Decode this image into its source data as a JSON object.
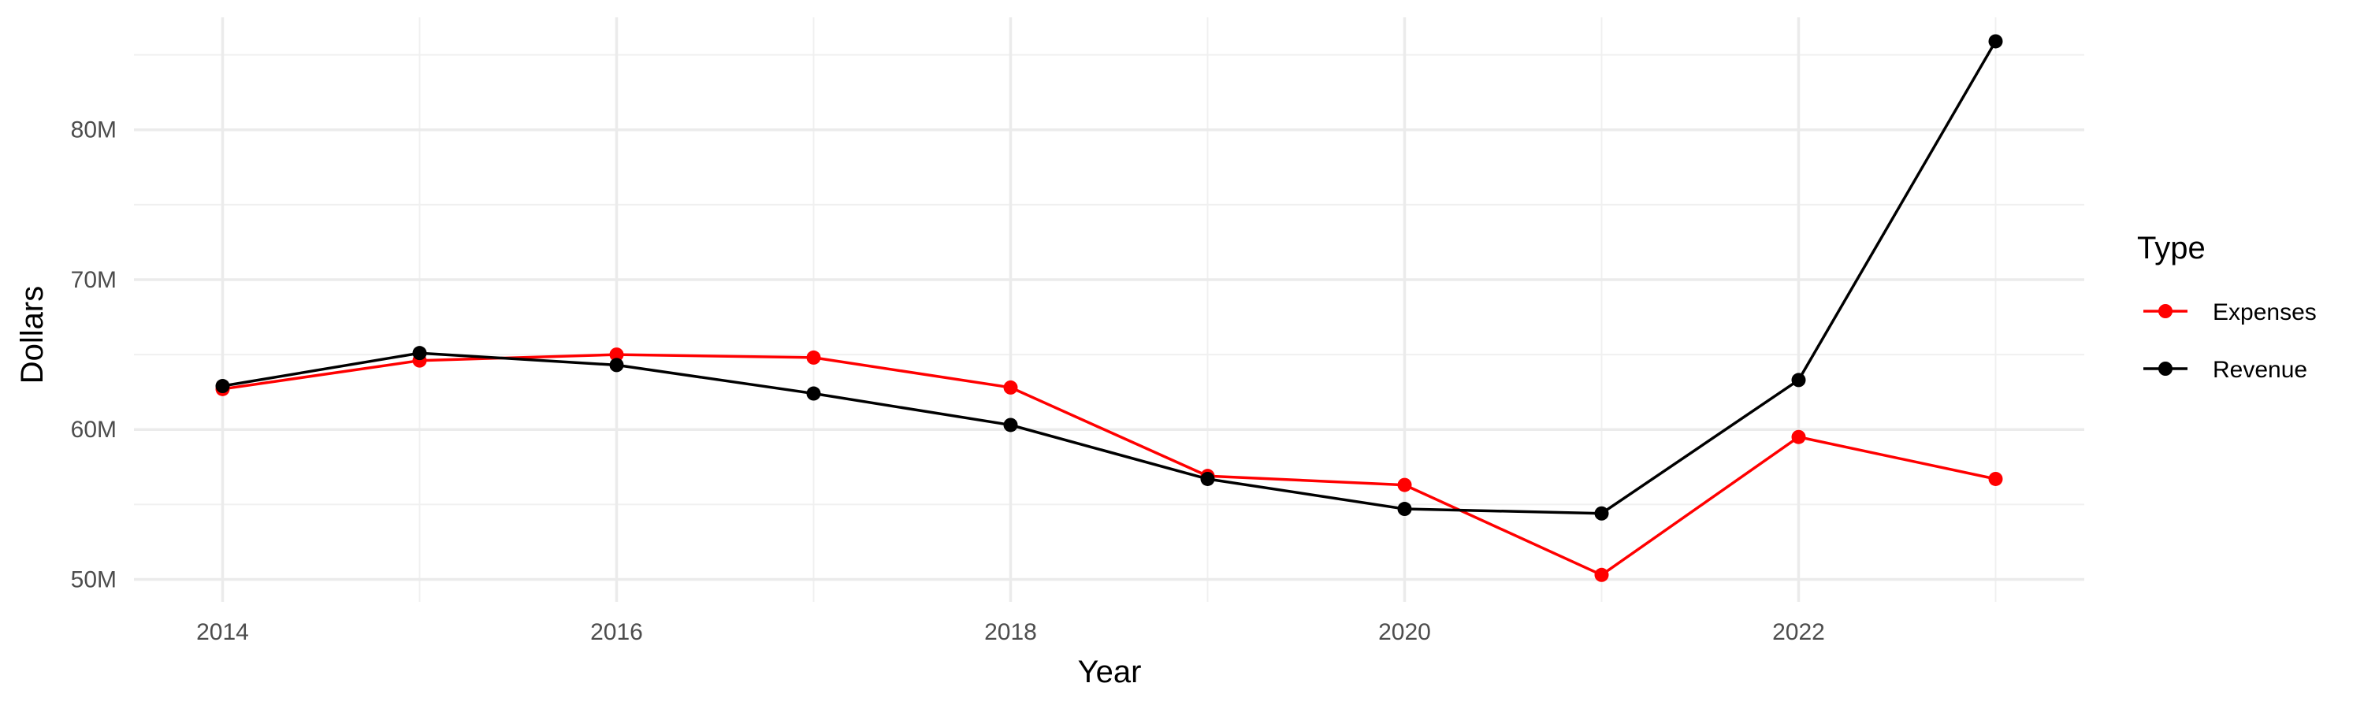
{
  "chart_data": {
    "type": "line",
    "xlabel": "Year",
    "ylabel": "Dollars",
    "x": [
      2014,
      2015,
      2016,
      2017,
      2018,
      2019,
      2020,
      2021,
      2022,
      2023
    ],
    "xlim": [
      2013.55,
      2023.45
    ],
    "ylim": [
      48500000,
      87500000
    ],
    "x_ticks": [
      {
        "value": 2014,
        "label": "2014"
      },
      {
        "value": 2016,
        "label": "2016"
      },
      {
        "value": 2018,
        "label": "2018"
      },
      {
        "value": 2020,
        "label": "2020"
      },
      {
        "value": 2022,
        "label": "2022"
      }
    ],
    "y_ticks": [
      {
        "value": 50000000,
        "label": "50M"
      },
      {
        "value": 60000000,
        "label": "60M"
      },
      {
        "value": 70000000,
        "label": "70M"
      },
      {
        "value": 80000000,
        "label": "80M"
      }
    ],
    "grid": true,
    "legend": {
      "title": "Type",
      "position": "right"
    },
    "series": [
      {
        "name": "Expenses",
        "color": "#ff0000",
        "values": [
          62700000,
          64600000,
          65000000,
          64800000,
          62800000,
          56900000,
          56300000,
          50300000,
          59500000,
          56700000
        ]
      },
      {
        "name": "Revenue",
        "color": "#000000",
        "values": [
          62900000,
          65100000,
          64300000,
          62400000,
          60300000,
          56700000,
          54700000,
          54400000,
          63300000,
          85900000
        ]
      }
    ]
  }
}
